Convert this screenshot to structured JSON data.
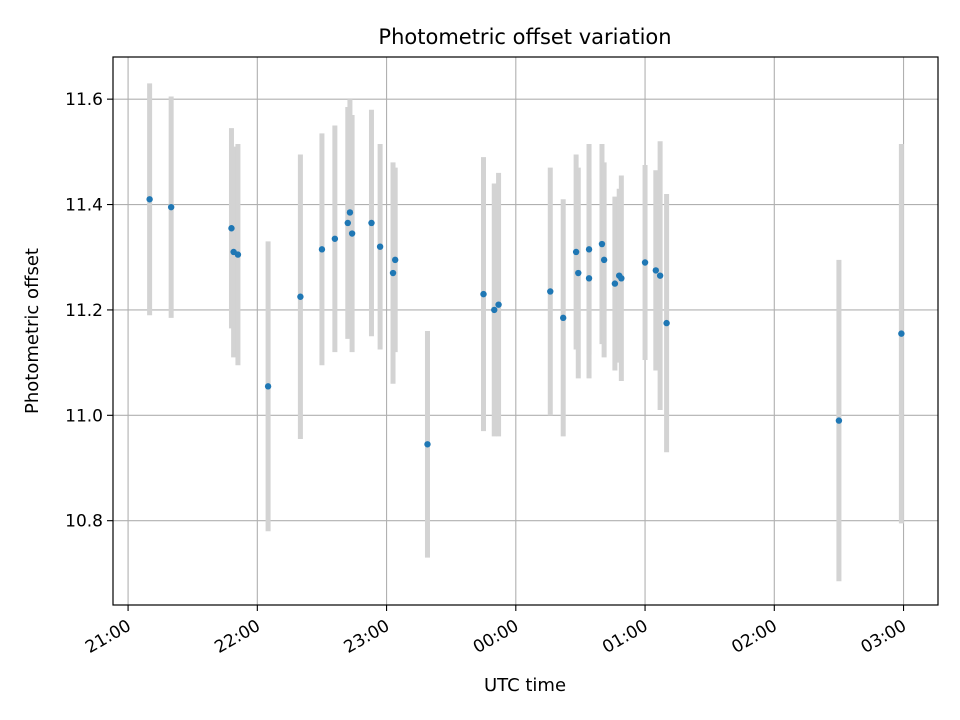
{
  "chart_data": {
    "type": "scatter",
    "title": "Photometric offset variation",
    "xlabel": "UTC time",
    "ylabel": "Photometric offset",
    "x_tick_labels": [
      "21:00",
      "22:00",
      "23:00",
      "00:00",
      "01:00",
      "02:00",
      "03:00"
    ],
    "y_ticks": [
      10.8,
      11.0,
      11.2,
      11.4,
      11.6
    ],
    "y_tick_labels": [
      "10.8",
      "11.0",
      "11.2",
      "11.4",
      "11.6"
    ],
    "xlim": [
      "20:53",
      "03:16"
    ],
    "ylim": [
      10.64,
      11.68
    ],
    "grid": true,
    "colors": {
      "points": "#1f77b4",
      "error_bars": "#d3d3d3",
      "grid": "#b0b0b0",
      "axes": "#000000"
    },
    "series": [
      {
        "points": [
          {
            "x": "21:10",
            "y": 11.41,
            "err": 0.22
          },
          {
            "x": "21:20",
            "y": 11.395,
            "err": 0.21
          },
          {
            "x": "21:48",
            "y": 11.355,
            "err": 0.19
          },
          {
            "x": "21:49",
            "y": 11.31,
            "err": 0.2
          },
          {
            "x": "21:51",
            "y": 11.305,
            "err": 0.21
          },
          {
            "x": "22:05",
            "y": 11.055,
            "err": 0.275
          },
          {
            "x": "22:20",
            "y": 11.225,
            "err": 0.27
          },
          {
            "x": "22:30",
            "y": 11.315,
            "err": 0.22
          },
          {
            "x": "22:36",
            "y": 11.335,
            "err": 0.215
          },
          {
            "x": "22:42",
            "y": 11.365,
            "err": 0.22
          },
          {
            "x": "22:43",
            "y": 11.385,
            "err": 0.215
          },
          {
            "x": "22:44",
            "y": 11.345,
            "err": 0.225
          },
          {
            "x": "22:53",
            "y": 11.365,
            "err": 0.215
          },
          {
            "x": "22:57",
            "y": 11.32,
            "err": 0.195
          },
          {
            "x": "23:03",
            "y": 11.27,
            "err": 0.21
          },
          {
            "x": "23:04",
            "y": 11.295,
            "err": 0.175
          },
          {
            "x": "23:19",
            "y": 10.945,
            "err": 0.215
          },
          {
            "x": "23:45",
            "y": 11.23,
            "err": 0.26
          },
          {
            "x": "23:50",
            "y": 11.2,
            "err": 0.24
          },
          {
            "x": "23:52",
            "y": 11.21,
            "err": 0.25
          },
          {
            "x": "00:16",
            "y": 11.235,
            "err": 0.235
          },
          {
            "x": "00:22",
            "y": 11.185,
            "err": 0.225
          },
          {
            "x": "00:28",
            "y": 11.31,
            "err": 0.185
          },
          {
            "x": "00:29",
            "y": 11.27,
            "err": 0.2
          },
          {
            "x": "00:34",
            "y": 11.315,
            "err": 0.2
          },
          {
            "x": "00:34",
            "y": 11.26,
            "err": 0.19
          },
          {
            "x": "00:40",
            "y": 11.325,
            "err": 0.19
          },
          {
            "x": "00:41",
            "y": 11.295,
            "err": 0.185
          },
          {
            "x": "00:46",
            "y": 11.25,
            "err": 0.165
          },
          {
            "x": "00:48",
            "y": 11.265,
            "err": 0.165
          },
          {
            "x": "00:49",
            "y": 11.26,
            "err": 0.195
          },
          {
            "x": "01:00",
            "y": 11.29,
            "err": 0.185
          },
          {
            "x": "01:05",
            "y": 11.275,
            "err": 0.19
          },
          {
            "x": "01:07",
            "y": 11.265,
            "err": 0.255
          },
          {
            "x": "01:10",
            "y": 11.175,
            "err": 0.245
          },
          {
            "x": "02:30",
            "y": 10.99,
            "err": 0.305
          },
          {
            "x": "02:59",
            "y": 11.155,
            "err": 0.36
          }
        ]
      }
    ]
  }
}
